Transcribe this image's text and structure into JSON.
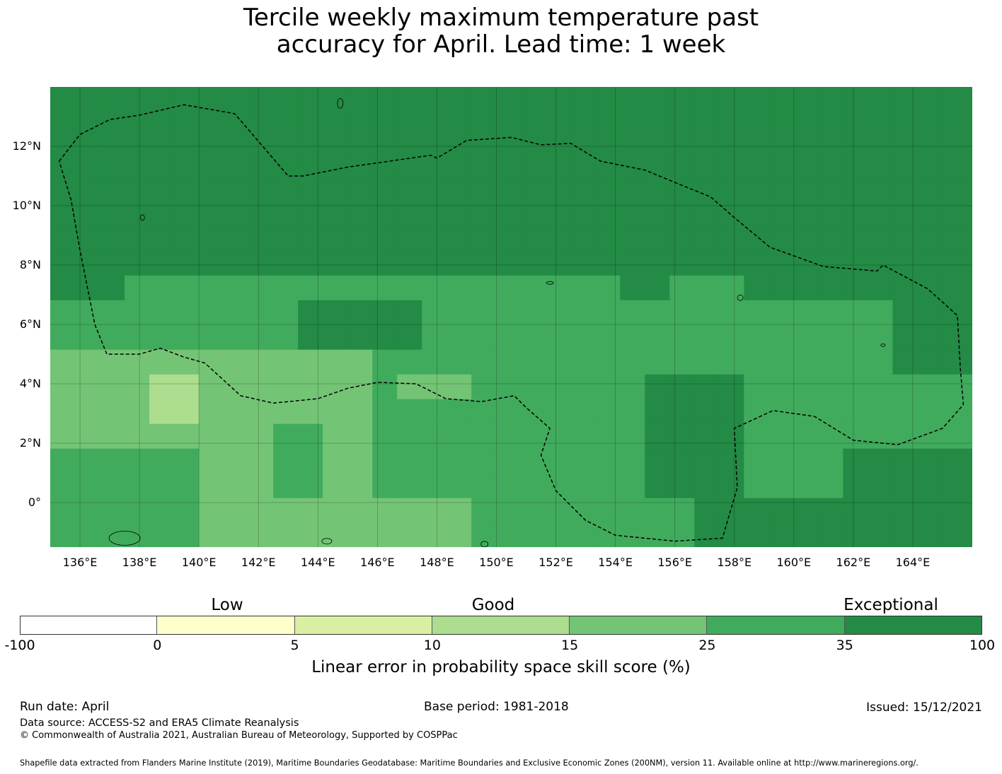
{
  "title": {
    "line1": "Tercile weekly maximum temperature past",
    "line2": "accuracy for April. Lead time: 1 week"
  },
  "map": {
    "lon_range": [
      135,
      166
    ],
    "lat_range": [
      -1.5,
      14
    ],
    "grid_step_deg": 0.833,
    "lat_ticks": [
      "12°N",
      "10°N",
      "8°N",
      "6°N",
      "4°N",
      "2°N",
      "0°"
    ],
    "lon_ticks": [
      "136°E",
      "138°E",
      "140°E",
      "142°E",
      "144°E",
      "146°E",
      "148°E",
      "150°E",
      "152°E",
      "154°E",
      "156°E",
      "158°E",
      "160°E",
      "162°E",
      "164°E"
    ],
    "colors": {
      "exceptional": "#238b45",
      "good_high": "#41ab5d",
      "good_mid": "#74c476",
      "good_low": "#addd8e",
      "low_high": "#d9f0a3",
      "low": "#ffffcc",
      "negative": "#ffffff"
    },
    "boundary_style": "dashed"
  },
  "colorbar": {
    "category_labels": [
      "Low",
      "Good",
      "Exceptional"
    ],
    "tick_labels": [
      "-100",
      "0",
      "5",
      "10",
      "15",
      "25",
      "35",
      "100"
    ],
    "colors": [
      "#ffffff",
      "#ffffcc",
      "#d9f0a3",
      "#addd8e",
      "#74c476",
      "#41ab5d",
      "#238b45"
    ],
    "title": "Linear error in probability space skill score (%)"
  },
  "footer": {
    "run_date": "Run date: April",
    "base_period": "Base period: 1981-2018",
    "issued": "Issued: 15/12/2021",
    "data_source": "Data source: ACCESS-S2 and ERA5 Climate Reanalysis",
    "copyright": "© Commonwealth of Australia 2021, Australian Bureau of Meteorology, Supported by COSPPac",
    "shapefile": "Shapefile data extracted from Flanders Marine Institute (2019), Maritime Boundaries Geodatabase: Maritime Boundaries and Exclusive Economic Zones (200NM), version 11. Available online at http://www.marineregions.org/."
  }
}
